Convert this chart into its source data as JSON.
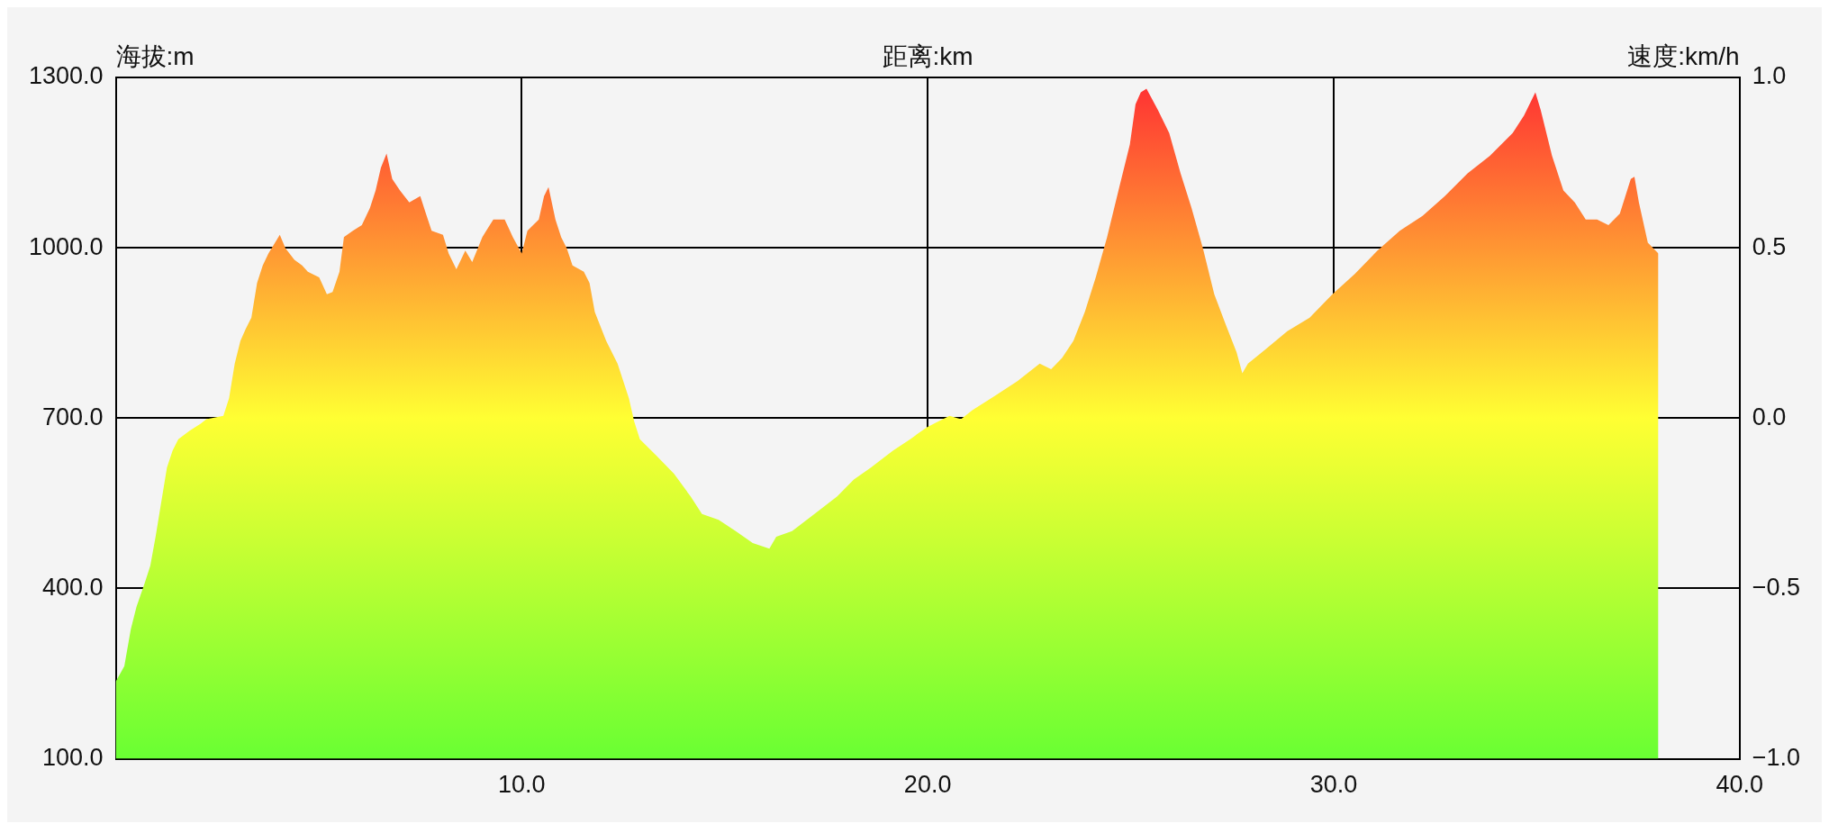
{
  "chart_data": {
    "type": "area",
    "xlabel": "距离:km",
    "ylabel": "海拔:m",
    "y2label": "速度:km/h",
    "x": [
      0,
      0.21,
      0.37,
      0.51,
      0.71,
      0.85,
      0.98,
      1.12,
      1.26,
      1.4,
      1.54,
      1.82,
      2.09,
      2.23,
      2.65,
      2.79,
      2.93,
      3.07,
      3.2,
      3.34,
      3.48,
      3.62,
      3.76,
      4.04,
      4.18,
      4.4,
      4.59,
      4.73,
      5.01,
      5.2,
      5.34,
      5.51,
      5.62,
      5.84,
      6.06,
      6.26,
      6.4,
      6.53,
      6.67,
      6.81,
      7,
      7.23,
      7.5,
      7.64,
      7.78,
      8.06,
      8.2,
      8.39,
      8.61,
      8.78,
      9.03,
      9.3,
      9.58,
      9.78,
      10,
      10.14,
      10.42,
      10.55,
      10.66,
      10.83,
      10.97,
      11.11,
      11.25,
      11.53,
      11.67,
      11.8,
      12.08,
      12.36,
      12.64,
      12.77,
      12.91,
      13.33,
      13.75,
      14.16,
      14.44,
      14.85,
      15.27,
      15.69,
      16.1,
      16.27,
      16.66,
      17.21,
      17.77,
      18.18,
      18.6,
      19.15,
      19.57,
      19.98,
      20.26,
      20.54,
      20.82,
      21.1,
      21.65,
      22.21,
      22.76,
      23.04,
      23.31,
      23.59,
      23.87,
      24.14,
      24.42,
      24.7,
      24.98,
      25.12,
      25.25,
      25.39,
      25.67,
      25.95,
      26.23,
      26.5,
      26.78,
      27.06,
      27.33,
      27.61,
      27.75,
      27.89,
      28.3,
      28.86,
      29.41,
      29.97,
      30.52,
      31.08,
      31.63,
      32.19,
      32.74,
      33.3,
      33.85,
      34.41,
      34.69,
      34.97,
      35.1,
      35.38,
      35.66,
      35.94,
      36.21,
      36.49,
      36.77,
      37.05,
      37.32,
      37.41,
      37.52,
      37.74,
      38
    ],
    "series": [
      {
        "color": "#ffff33",
        "values": [
          236,
          263,
          328,
          368,
          409,
          440,
          491,
          552,
          613,
          643,
          663,
          678,
          690,
          698,
          704,
          735,
          796,
          836,
          857,
          877,
          938,
          969,
          990,
          1023,
          999,
          979,
          969,
          958,
          948,
          918,
          922,
          958,
          1019,
          1030,
          1040,
          1070,
          1101,
          1141,
          1166,
          1121,
          1101,
          1080,
          1091,
          1060,
          1030,
          1023,
          990,
          962,
          995,
          975,
          1019,
          1050,
          1050,
          1019,
          990,
          1030,
          1050,
          1091,
          1107,
          1050,
          1019,
          999,
          969,
          958,
          938,
          887,
          836,
          796,
          735,
          694,
          663,
          633,
          602,
          562,
          531,
          521,
          501,
          480,
          470,
          491,
          501,
          531,
          562,
          592,
          613,
          643,
          663,
          684,
          694,
          704,
          698,
          714,
          739,
          765,
          796,
          786,
          806,
          836,
          887,
          948,
          1019,
          1101,
          1182,
          1253,
          1274,
          1280,
          1243,
          1202,
          1131,
          1070,
          999,
          918,
          867,
          816,
          779,
          796,
          820,
          853,
          877,
          918,
          954,
          995,
          1030,
          1056,
          1091,
          1131,
          1162,
          1202,
          1233,
          1274,
          1243,
          1162,
          1101,
          1080,
          1050,
          1050,
          1040,
          1060,
          1121,
          1125,
          1080,
          1009,
          990
        ]
      }
    ],
    "xlim": [
      0,
      40
    ],
    "xticks": [
      {
        "value": 10,
        "label": "10.0"
      },
      {
        "value": 20,
        "label": "20.0"
      },
      {
        "value": 30,
        "label": "30.0"
      },
      {
        "value": 40,
        "label": "40.0"
      }
    ],
    "ylim": [
      100,
      1300
    ],
    "yticks": [
      {
        "value": 100,
        "label": "100.0"
      },
      {
        "value": 400,
        "label": "400.0"
      },
      {
        "value": 700,
        "label": "700.0"
      },
      {
        "value": 1000,
        "label": "1000.0"
      },
      {
        "value": 1300,
        "label": "1300.0"
      }
    ],
    "y2lim": [
      -1,
      1
    ],
    "y2ticks": [
      {
        "value": -1,
        "label": "−1.0"
      },
      {
        "value": -0.5,
        "label": "−0.5"
      },
      {
        "value": 0,
        "label": "0.0"
      },
      {
        "value": 0.5,
        "label": "0.5"
      },
      {
        "value": 1,
        "label": "1.0"
      }
    ],
    "grid": true,
    "legend": false,
    "marker": "none"
  }
}
